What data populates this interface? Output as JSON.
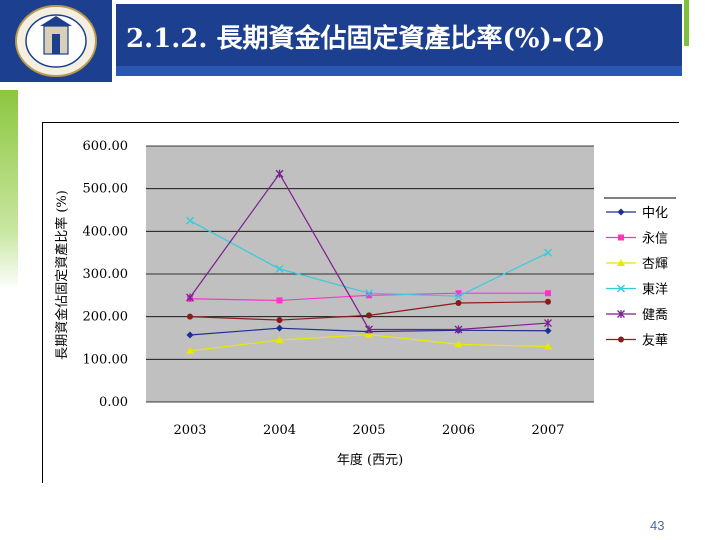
{
  "slide": {
    "title": "2.1.2. 長期資金佔固定資產比率(%)-(2)",
    "page_number": "43"
  },
  "colors": {
    "header_blue": "#1d3f8f",
    "accent_green": "#7fbf3f",
    "plot_bg": "#c0c0c0"
  },
  "chart_data": {
    "type": "line",
    "title": "",
    "xlabel": "年度 (西元)",
    "ylabel": "長期資金佔固定資產比率 (%)",
    "categories": [
      "2003",
      "2004",
      "2005",
      "2006",
      "2007"
    ],
    "ylim": [
      0,
      600
    ],
    "yticks": [
      "0.00",
      "100.00",
      "200.00",
      "300.00",
      "400.00",
      "500.00",
      "600.00"
    ],
    "grid": "horizontal",
    "legend_position": "right",
    "series": [
      {
        "name": "中化",
        "color": "#1f2f8f",
        "marker": "diamond",
        "values": [
          157,
          173,
          165,
          168,
          167
        ]
      },
      {
        "name": "永信",
        "color": "#ff33cc",
        "marker": "square",
        "values": [
          242,
          238,
          250,
          255,
          255
        ]
      },
      {
        "name": "杏輝",
        "color": "#e8e800",
        "marker": "triangle",
        "values": [
          120,
          145,
          158,
          135,
          130
        ]
      },
      {
        "name": "東洋",
        "color": "#33ccdd",
        "marker": "x",
        "values": [
          425,
          312,
          255,
          248,
          350
        ]
      },
      {
        "name": "健喬",
        "color": "#7a1f8f",
        "marker": "star",
        "values": [
          245,
          535,
          170,
          170,
          185
        ]
      },
      {
        "name": "友華",
        "color": "#8b1a1a",
        "marker": "circle",
        "values": [
          200,
          192,
          203,
          232,
          235
        ]
      }
    ]
  }
}
